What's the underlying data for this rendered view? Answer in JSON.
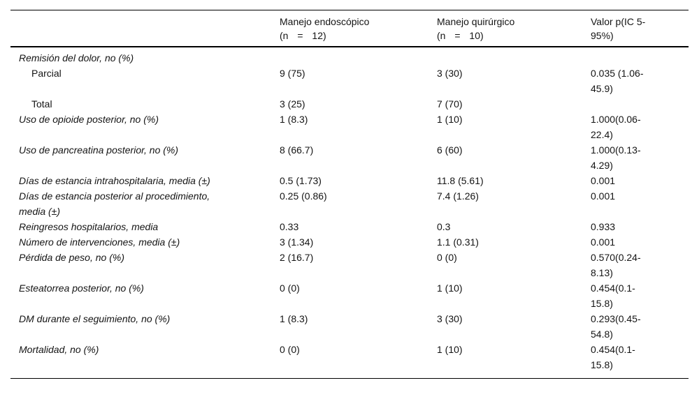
{
  "page": {
    "background": "#ffffff",
    "text_color": "#141414",
    "rule_color": "#000000"
  },
  "table": {
    "header": {
      "parameter": "",
      "endoscopic": {
        "title": "Manejo endoscópico",
        "n": "(n = 12)"
      },
      "surgical": {
        "title": "Manejo quirúrgico",
        "n": "(n = 10)"
      },
      "p_value": "Valor p(IC 5-\n95%)"
    },
    "rows": [
      {
        "label": "Remisión del dolor, no (%)",
        "kind": "group",
        "endoscopic": "",
        "surgical": "",
        "p": ""
      },
      {
        "label": "Parcial",
        "kind": "sub",
        "endoscopic": "9 (75)",
        "surgical": "3 (30)",
        "p": "0.035 (1.06-\n45.9)"
      },
      {
        "label": "Total",
        "kind": "sub",
        "endoscopic": "3 (25)",
        "surgical": "7 (70)",
        "p": ""
      },
      {
        "label": "Uso de opioide posterior, no (%)",
        "kind": "group",
        "endoscopic": "1 (8.3)",
        "surgical": "1 (10)",
        "p": "1.000(0.06-\n22.4)"
      },
      {
        "label": "Uso de pancreatina posterior, no (%)",
        "kind": "group",
        "endoscopic": "8 (66.7)",
        "surgical": "6 (60)",
        "p": "1.000(0.13-\n4.29)"
      },
      {
        "label": "Días de estancia intrahospitalaria, media (±)",
        "kind": "group",
        "endoscopic": "0.5 (1.73)",
        "surgical": "11.8 (5.61)",
        "p": "0.001"
      },
      {
        "label": "Días de estancia posterior al procedimiento,\nmedia (±)",
        "kind": "group",
        "endoscopic": "0.25 (0.86)",
        "surgical": "7.4 (1.26)",
        "p": "0.001"
      },
      {
        "label": "Reingresos hospitalarios, media",
        "kind": "group",
        "endoscopic": "0.33",
        "surgical": "0.3",
        "p": "0.933"
      },
      {
        "label": "Número de intervenciones, media (±)",
        "kind": "group",
        "endoscopic": "3 (1.34)",
        "surgical": "1.1 (0.31)",
        "p": "0.001"
      },
      {
        "label": "Pérdida de peso, no (%)",
        "kind": "group",
        "endoscopic": "2 (16.7)",
        "surgical": "0 (0)",
        "p": "0.570(0.24-\n8.13)"
      },
      {
        "label": "Esteatorrea posterior, no (%)",
        "kind": "group",
        "endoscopic": "0 (0)",
        "surgical": "1 (10)",
        "p": "0.454(0.1-\n15.8)"
      },
      {
        "label": "DM durante el seguimiento, no (%)",
        "kind": "group",
        "endoscopic": "1 (8.3)",
        "surgical": "3 (30)",
        "p": "0.293(0.45-\n54.8)"
      },
      {
        "label": "Mortalidad, no (%)",
        "kind": "group",
        "endoscopic": "0 (0)",
        "surgical": "1 (10)",
        "p": "0.454(0.1-\n15.8)"
      }
    ]
  }
}
